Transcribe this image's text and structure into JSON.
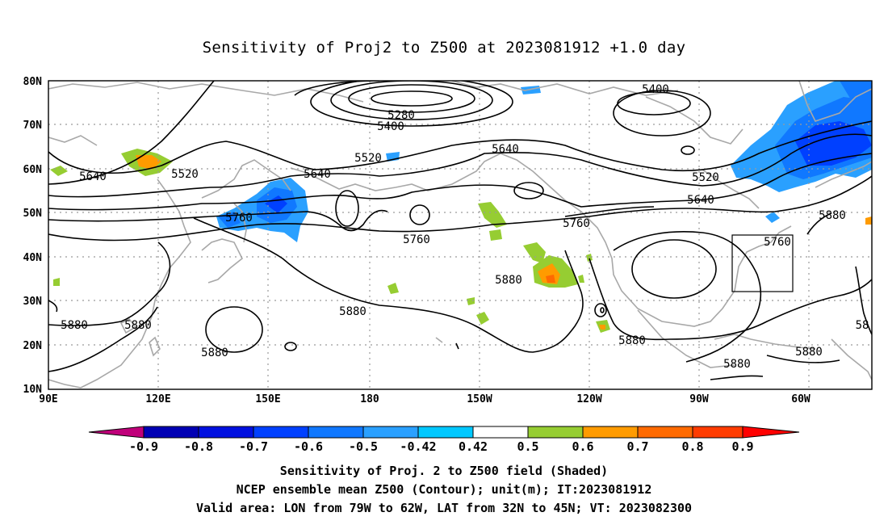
{
  "title": "Sensitivity of Proj2 to Z500 at 2023081912 +1.0 day",
  "axes": {
    "lat_labels": [
      "80N",
      "70N",
      "60N",
      "50N",
      "40N",
      "30N",
      "20N",
      "10N"
    ],
    "lon_labels": [
      "90E",
      "120E",
      "150E",
      "180",
      "150W",
      "120W",
      "90W",
      "60W"
    ]
  },
  "contour_labels": [
    "5280",
    "5400",
    "5400",
    "5520",
    "5520",
    "5520",
    "5640",
    "5640",
    "5640",
    "5640",
    "5760",
    "5760",
    "5760",
    "5760",
    "5880",
    "5880",
    "5880",
    "5880",
    "5880",
    "5880",
    "5880",
    "5880",
    "5880",
    "58"
  ],
  "colorbar": {
    "tick_labels": [
      "-0.9",
      "-0.8",
      "-0.7",
      "-0.6",
      "-0.5",
      "-0.42",
      "0.42",
      "0.5",
      "0.6",
      "0.7",
      "0.8",
      "0.9"
    ],
    "colors": [
      "#c0007a",
      "#0000b4",
      "#0010e0",
      "#0040ff",
      "#1078ff",
      "#2aa0ff",
      "#00c8ff",
      "#ffffff",
      "#96cd32",
      "#ff9b00",
      "#ff6a00",
      "#ff3c00",
      "#ff0000",
      "#ff96c8"
    ]
  },
  "captions": {
    "line1": "Sensitivity of Proj. 2 to Z500 field (Shaded)",
    "line2": "NCEP ensemble mean Z500 (Contour); unit(m); IT:2023081912",
    "line3": "Valid area: LON from 79W to 62W, LAT from 32N to 45N; VT: 2023082300"
  }
}
